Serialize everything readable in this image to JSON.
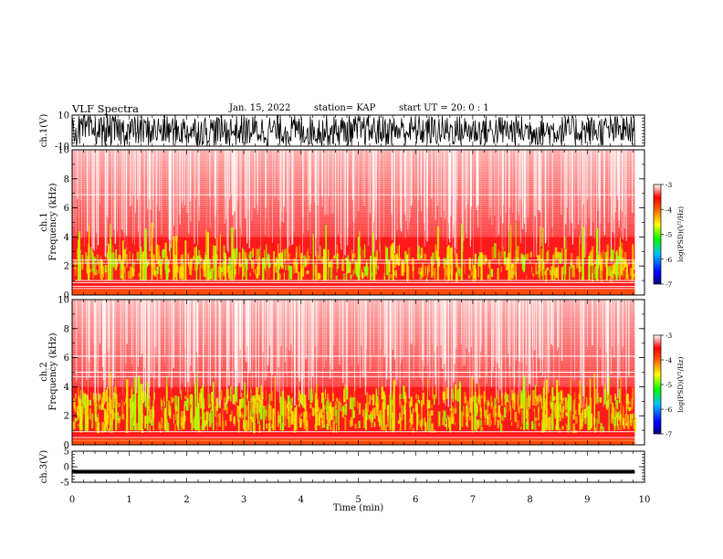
{
  "header": {
    "title": "VLF Spectra",
    "date": "Jan. 15, 2022",
    "station": "station= KAP",
    "start": "start  UT =   20: 0  : 1"
  },
  "chart_data": [
    {
      "type": "line",
      "name": "waveform-ch1",
      "ylabel": "ch.1(V)",
      "ylim": [
        -10,
        10
      ],
      "yticks": [
        "10",
        "-10"
      ],
      "xlim": [
        0,
        10
      ],
      "xmax_data": 9.83,
      "description_values": "dense oscillation saturating near +/-10 V"
    },
    {
      "type": "heatmap",
      "name": "spectrogram-ch1",
      "ylabel": "ch.1\nFrequency (kHz)",
      "ylabel_line1": "ch.1",
      "ylabel_line2": "Frequency (kHz)",
      "ylim": [
        0,
        10
      ],
      "yticks": [
        "0",
        "2",
        "4",
        "6",
        "8",
        "10"
      ],
      "xlim": [
        0,
        10
      ],
      "colorbar": {
        "label": "log(PSD)(V²/Hz)",
        "range": [
          -7,
          -3
        ],
        "ticks": [
          "-3",
          "-4",
          "-5",
          "-6",
          "-7"
        ]
      }
    },
    {
      "type": "heatmap",
      "name": "spectrogram-ch2",
      "ylabel_line1": "ch.2",
      "ylabel_line2": "Frequency (kHz)",
      "ylim": [
        0,
        10
      ],
      "yticks": [
        "0",
        "2",
        "4",
        "6",
        "8",
        "10"
      ],
      "xlim": [
        0,
        10
      ],
      "colorbar": {
        "label": "log(PSD)(V²/Hz)",
        "range": [
          -7,
          -3
        ],
        "ticks": [
          "-3",
          "-4",
          "-5",
          "-6",
          "-7"
        ]
      }
    },
    {
      "type": "line",
      "name": "waveform-ch3",
      "ylabel": "ch.3(V)",
      "ylim": [
        -5,
        5
      ],
      "yticks": [
        "5",
        "0",
        "-5"
      ],
      "xlim": [
        0,
        10
      ],
      "xmax_data": 9.83,
      "description_values": "near-constant band around -1.5 V"
    }
  ],
  "xaxis": {
    "label": "Time (min)",
    "ticks": [
      "0",
      "1",
      "2",
      "3",
      "4",
      "5",
      "6",
      "7",
      "8",
      "9",
      "10"
    ]
  },
  "colors": {
    "high": "#ff0000",
    "mid": "#ffff00",
    "low": "#00ff00",
    "lowest": "#0000aa",
    "background": "#ffffff"
  }
}
